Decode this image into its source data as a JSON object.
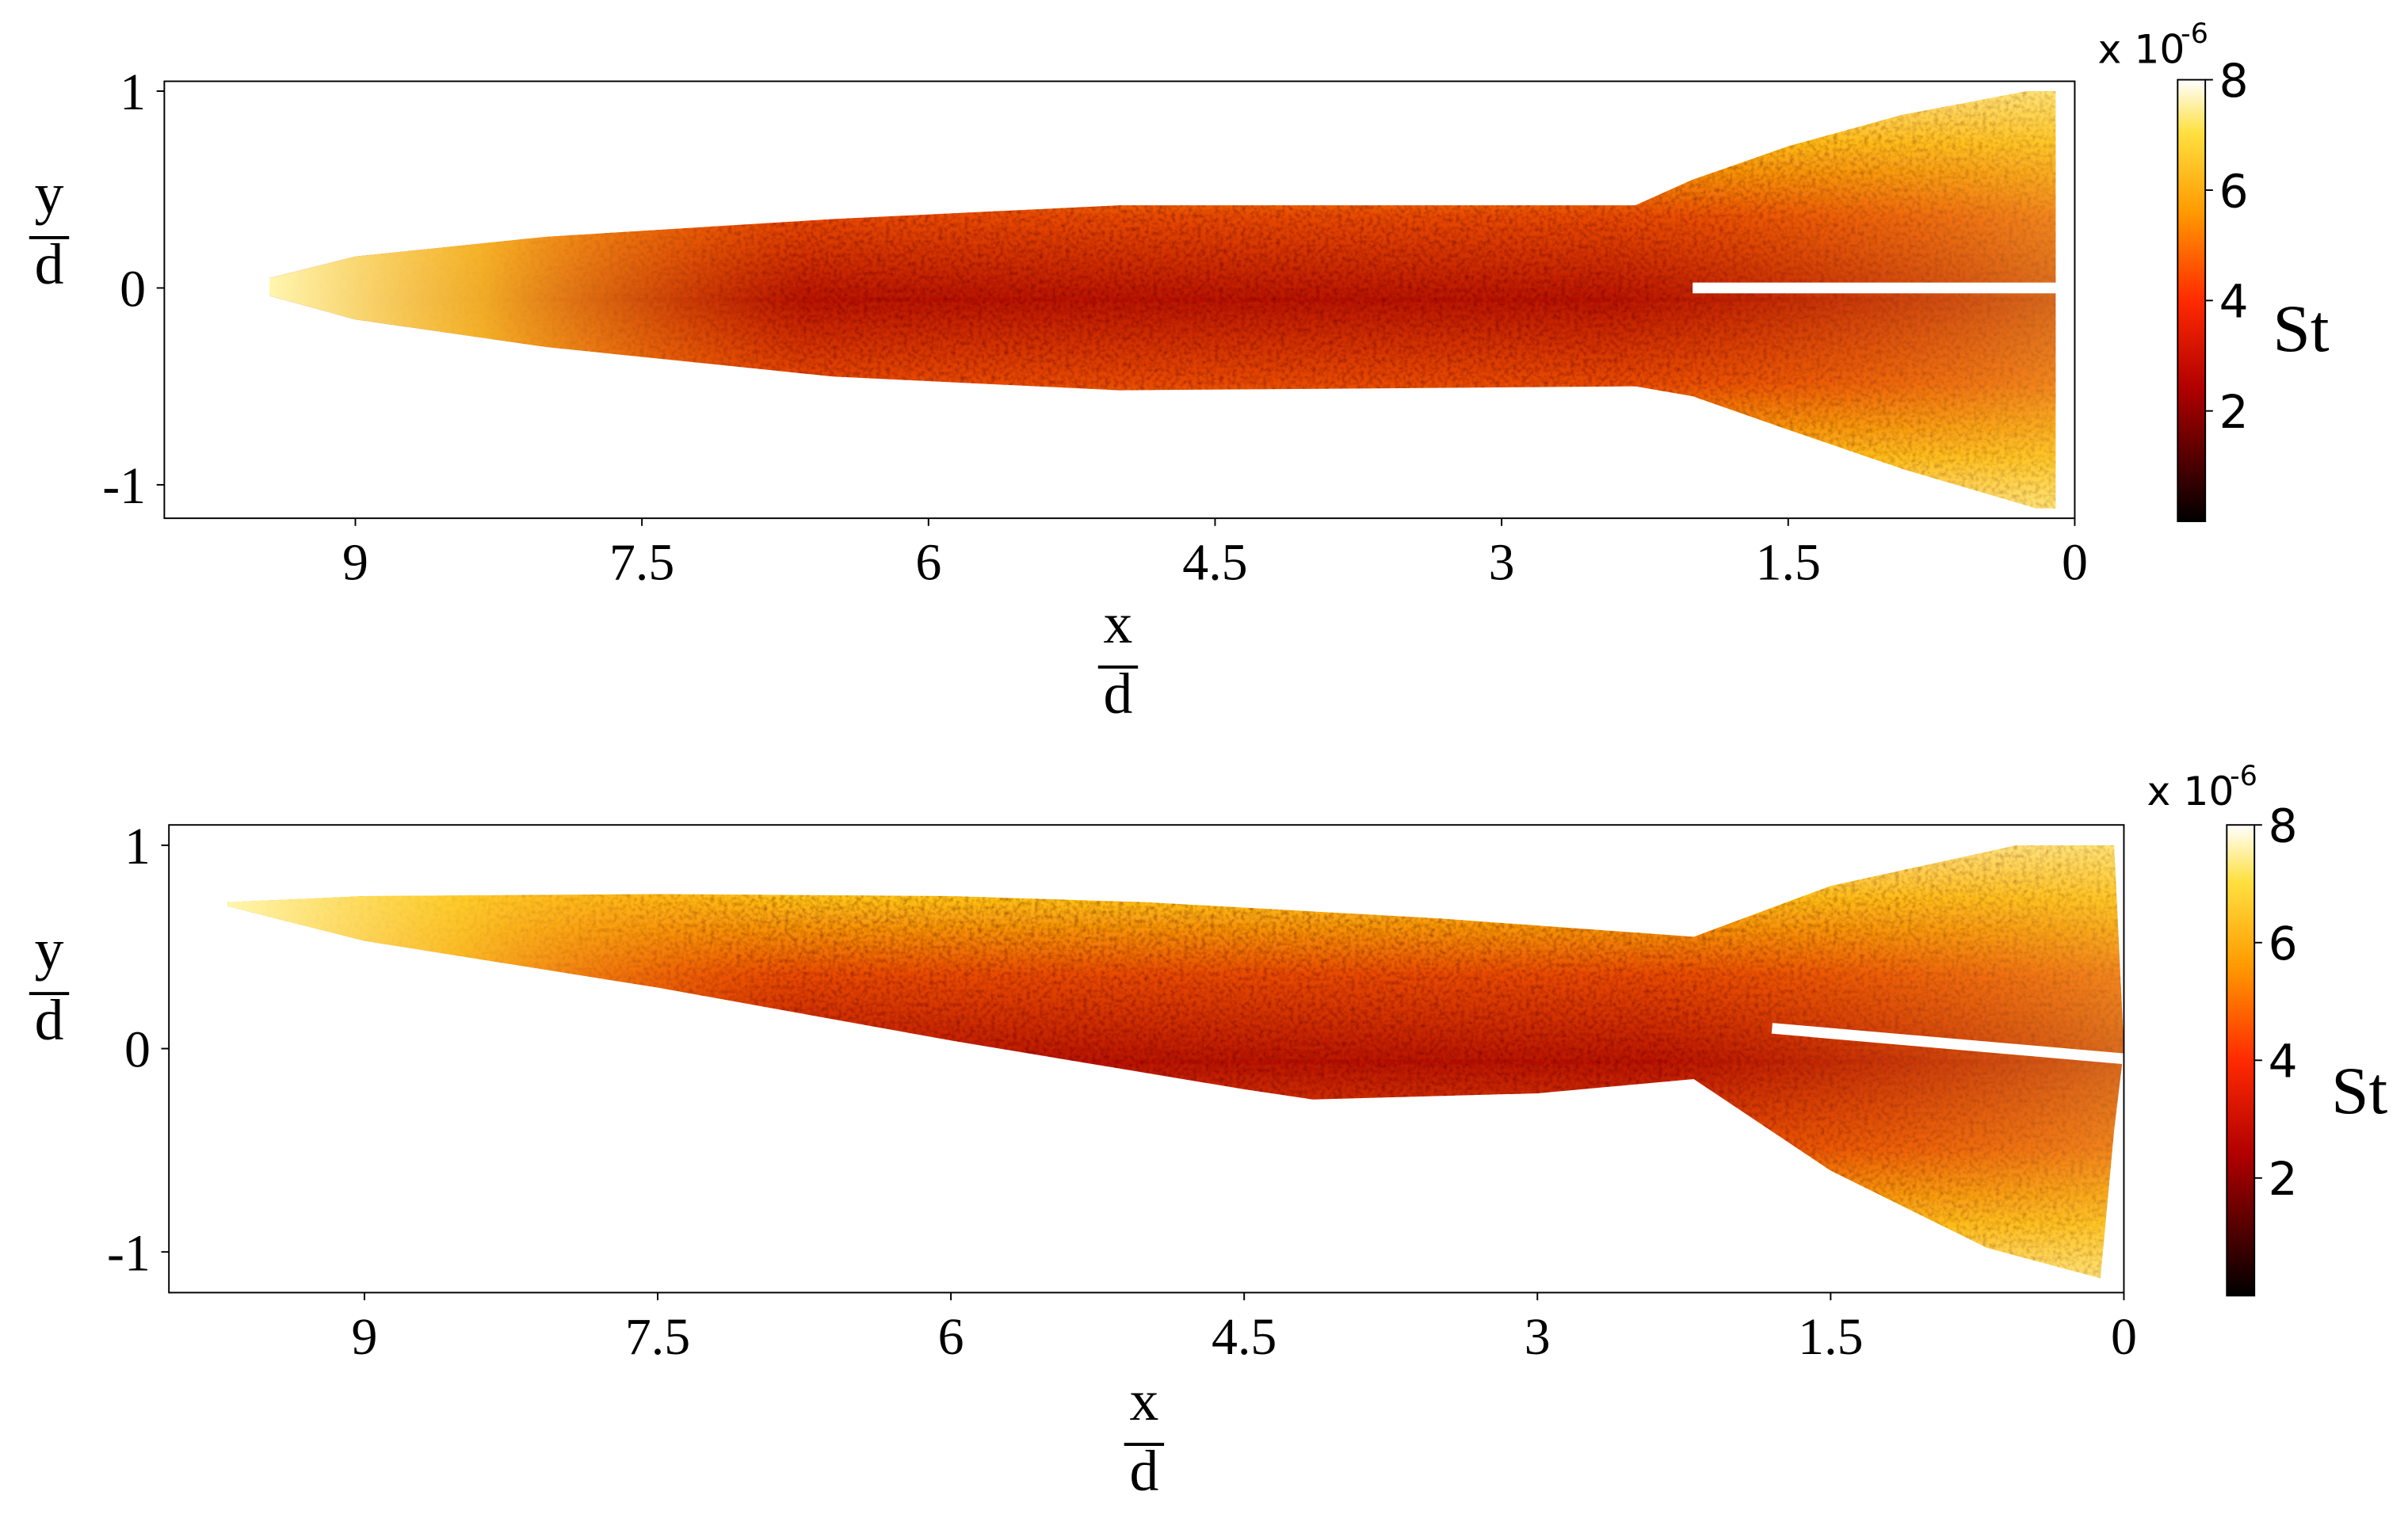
{
  "chart_data": [
    {
      "type": "heatmap",
      "x_label": {
        "numerator": "x",
        "denominator": "d"
      },
      "y_label": {
        "numerator": "y",
        "denominator": "d"
      },
      "xlim": [
        10,
        0
      ],
      "xticks": [
        9,
        7.5,
        6,
        4.5,
        3,
        1.5,
        0
      ],
      "ylim": [
        -1.17,
        1.05
      ],
      "yticks": [
        -1,
        0,
        1
      ],
      "colorbar": {
        "label": "St",
        "lim": [
          0,
          8
        ],
        "ticks": [
          2,
          4,
          6,
          8
        ],
        "scale": "x 10",
        "exponent": "-6",
        "colormap": "hot"
      },
      "outline": {
        "x": [
          9.45,
          9.0,
          8.0,
          6.5,
          5.0,
          2.3,
          2.0,
          1.5,
          0.9,
          0.25,
          0.1,
          0.1,
          0.2,
          0.9,
          1.5,
          2.0,
          2.3,
          5.0,
          6.5,
          8.0,
          9.0,
          9.45
        ],
        "y": [
          0.05,
          0.16,
          0.26,
          0.35,
          0.42,
          0.42,
          0.55,
          0.72,
          0.88,
          1.0,
          1.0,
          -1.12,
          -1.12,
          -0.92,
          -0.72,
          -0.55,
          -0.5,
          -0.52,
          -0.45,
          -0.3,
          -0.16,
          -0.04
        ]
      },
      "slot": {
        "x": [
          2.0,
          0.05
        ],
        "y": [
          0.0,
          0.0
        ]
      }
    },
    {
      "type": "heatmap",
      "x_label": {
        "numerator": "x",
        "denominator": "d"
      },
      "y_label": {
        "numerator": "y",
        "denominator": "d"
      },
      "xlim": [
        10,
        0
      ],
      "xticks": [
        9,
        7.5,
        6,
        4.5,
        3,
        1.5,
        0
      ],
      "ylim": [
        -1.2,
        1.1
      ],
      "yticks": [
        -1,
        0,
        1
      ],
      "colorbar": {
        "label": "St",
        "lim": [
          0,
          8
        ],
        "ticks": [
          2,
          4,
          6,
          8
        ],
        "scale": "x 10",
        "exponent": "-6",
        "colormap": "hot"
      },
      "outline": {
        "x": [
          9.7,
          9.0,
          7.5,
          6.0,
          5.0,
          3.5,
          2.2,
          1.5,
          0.55,
          0.05,
          0.0,
          0.05,
          0.12,
          0.7,
          1.5,
          2.2,
          3.0,
          4.15,
          4.5,
          6.0,
          7.5,
          9.0,
          9.7
        ],
        "y": [
          0.72,
          0.75,
          0.76,
          0.75,
          0.72,
          0.64,
          0.55,
          0.8,
          1.0,
          1.0,
          0.0,
          -0.4,
          -1.13,
          -0.98,
          -0.6,
          -0.15,
          -0.22,
          -0.25,
          -0.2,
          0.04,
          0.3,
          0.53,
          0.7
        ]
      },
      "slot": {
        "x": [
          1.8,
          0.0
        ],
        "y": [
          0.1,
          -0.05
        ]
      }
    }
  ]
}
